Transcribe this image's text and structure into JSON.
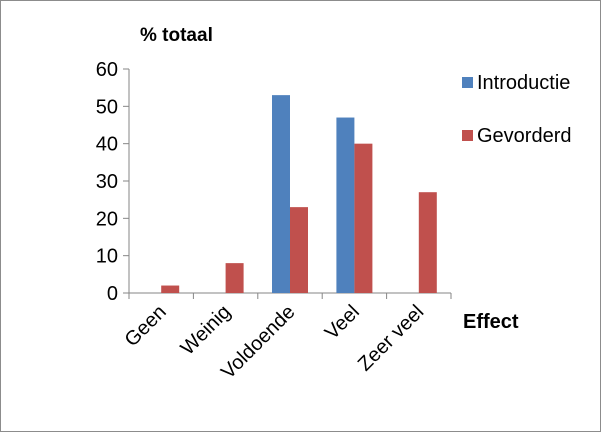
{
  "chart_data": {
    "type": "bar",
    "ylabel": "% totaal",
    "xlabel": "Effect",
    "categories": [
      "Geen",
      "Weinig",
      "Voldoende",
      "Veel",
      "Zeer veel"
    ],
    "series": [
      {
        "name": "Introductie",
        "color": "#4f81bd",
        "values": [
          0,
          0,
          53,
          47,
          0
        ]
      },
      {
        "name": "Gevorderd",
        "color": "#c0504d",
        "values": [
          2,
          8,
          23,
          40,
          27
        ]
      }
    ],
    "ylim": [
      0,
      60
    ],
    "yticks": [
      0,
      10,
      20,
      30,
      40,
      50,
      60
    ],
    "grid": false,
    "legend": "right"
  }
}
